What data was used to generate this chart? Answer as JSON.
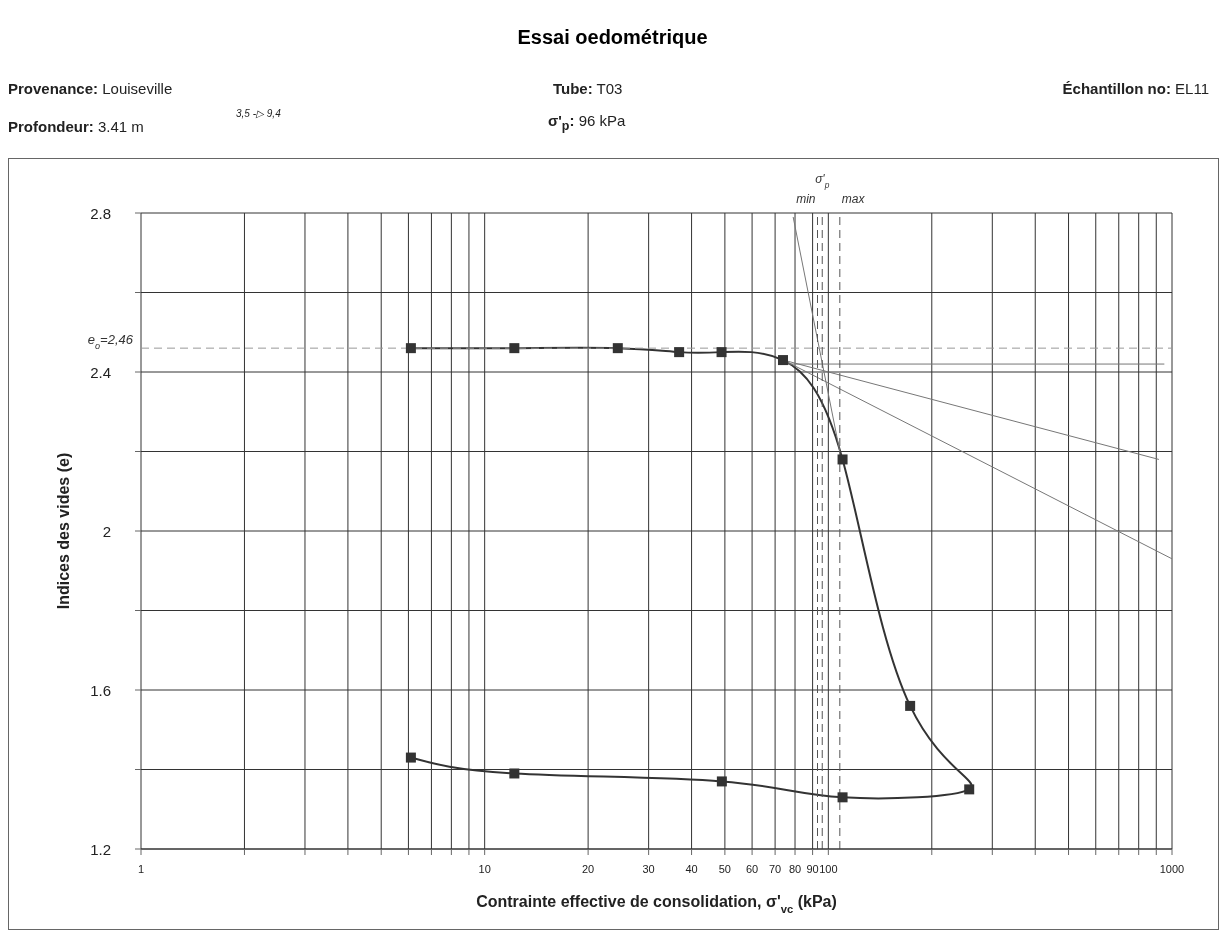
{
  "chart_data": {
    "type": "line",
    "title": "Essai oedométrique",
    "annotations": [
      "Provenance: Louiseville",
      "Tube: T03",
      "Échantillon no: EL11",
      "Profondeur: 3.41 m",
      "3,5 -▷ 9,4",
      "σ'$_{p}$: 96 kPa"
    ],
    "xlabel": "Contrainte effective de consolidation, σ'$_{vc}$ (kPa)",
    "ylabel": "Indices des vides (e)",
    "log": "x",
    "xlim": [
      1,
      1000
    ],
    "xticks": [
      1,
      {
        "value": 2,
        "label": null
      },
      {
        "value": 3,
        "label": null
      },
      {
        "value": 4,
        "label": null
      },
      {
        "value": 5,
        "label": null
      },
      {
        "value": 6,
        "label": null
      },
      {
        "value": 7,
        "label": null
      },
      {
        "value": 8,
        "label": null
      },
      {
        "value": 9,
        "label": null
      },
      10,
      20,
      30,
      40,
      50,
      60,
      70,
      80,
      90,
      100,
      {
        "value": 200,
        "label": null
      },
      {
        "value": 300,
        "label": null
      },
      {
        "value": 400,
        "label": null
      },
      {
        "value": 500,
        "label": null
      },
      {
        "value": 600,
        "label": null
      },
      {
        "value": 700,
        "label": null
      },
      {
        "value": 800,
        "label": null
      },
      {
        "value": 900,
        "label": null
      },
      1000
    ],
    "ylim": [
      1.2,
      2.8
    ],
    "yticks": [
      1.2,
      {
        "value": 1.4,
        "label": null
      },
      1.6,
      {
        "value": 1.8,
        "label": null
      },
      2,
      {
        "value": 2.2,
        "label": null
      },
      2.4,
      {
        "value": 2.6,
        "label": null
      },
      2.8
    ],
    "grid": true,
    "legend": false,
    "marker": "square",
    "line_style": "solid",
    "series": [
      {
        "color": "#333333",
        "x": [
          6.1,
          12.2,
          24.4,
          36.8,
          48.9,
          73.8,
          110,
          173,
          257,
          110,
          49,
          12.2,
          6.1
        ],
        "values": [
          2.46,
          2.46,
          2.46,
          2.45,
          2.45,
          2.43,
          2.18,
          1.56,
          1.35,
          1.33,
          1.37,
          1.39,
          1.43
        ]
      },
      {
        "type": "line",
        "marker": "none",
        "color": "#777777",
        "x": [
          79,
          108
        ],
        "values": [
          2.79,
          2.2
        ]
      },
      {
        "type": "line",
        "marker": "none",
        "color": "#777777",
        "x": [
          74,
          1000
        ],
        "values": [
          2.43,
          1.93
        ]
      },
      {
        "type": "line",
        "marker": "none",
        "color": "#777777",
        "x": [
          74,
          916
        ],
        "values": [
          2.43,
          2.18
        ]
      },
      {
        "type": "line",
        "marker": "none",
        "color": "#777777",
        "x": [
          74,
          950
        ],
        "values": [
          2.42,
          2.42
        ]
      }
    ],
    "ref_lines": [
      {
        "axis": "y",
        "value": 2.46,
        "label": "e$_{o}$=2,46",
        "line_style": "dashed",
        "color": "#999999"
      },
      {
        "axis": "x",
        "value": 93,
        "label": "min",
        "line_style": "dashed",
        "color": "#555555"
      },
      {
        "axis": "x",
        "value": 96,
        "label": "σ'$_{p}$",
        "line_style": "dashed",
        "color": "#555555"
      },
      {
        "axis": "x",
        "value": 108,
        "label": "max",
        "line_style": "dashed",
        "color": "#555555"
      }
    ]
  }
}
